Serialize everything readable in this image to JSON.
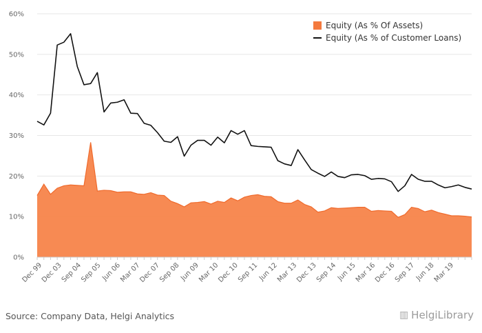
{
  "source_text": "Source: Company Data, Helgi Analytics",
  "logo": {
    "text": "HelgiLibrary",
    "icon": "helgi-logo-icon"
  },
  "colors": {
    "assets": "#f47a3e",
    "assets_fill": "#f7844a",
    "loans": "#111111",
    "grid": "#e6e6e6"
  },
  "chart_data": {
    "type": "area",
    "title": "",
    "xlabel": "",
    "ylabel": "",
    "ylim": [
      0,
      60
    ],
    "yticks": [
      "0%",
      "10%",
      "20%",
      "30%",
      "40%",
      "50%",
      "60%"
    ],
    "grid": true,
    "legend_position": "top-right",
    "x_tick_labels": [
      "Dec 99",
      "Dec 03",
      "Sep 04",
      "Sep 05",
      "Jun 06",
      "Mar 07",
      "Dec 07",
      "Sep 08",
      "Jun 09",
      "Mar 10",
      "Dec 10",
      "Sep 11",
      "Jun 12",
      "Mar 13",
      "Dec 13",
      "Sep 14",
      "Jun 15",
      "Mar 16",
      "Dec 16",
      "Sep 17",
      "Jun 18",
      "Mar 19"
    ],
    "series": [
      {
        "name": "Equity (As % Of Assets)",
        "type": "area",
        "values": [
          15.2,
          18.0,
          15.5,
          17.0,
          17.6,
          17.8,
          17.7,
          17.6,
          28.3,
          16.3,
          16.5,
          16.4,
          16.0,
          16.1,
          16.1,
          15.6,
          15.5,
          15.9,
          15.3,
          15.2,
          13.8,
          13.2,
          12.4,
          13.4,
          13.5,
          13.7,
          13.1,
          13.8,
          13.5,
          14.6,
          13.9,
          14.8,
          15.2,
          15.4,
          15.0,
          14.9,
          13.7,
          13.3,
          13.3,
          14.1,
          13.0,
          12.4,
          11.1,
          11.4,
          12.2,
          12.0,
          12.1,
          12.2,
          12.3,
          12.3,
          11.3,
          11.5,
          11.4,
          11.3,
          9.8,
          10.5,
          12.3,
          12.0,
          11.2,
          11.6,
          11.0,
          10.6,
          10.2,
          10.2,
          10.1,
          9.9
        ]
      },
      {
        "name": "Equity (As % of Customer Loans)",
        "type": "line",
        "values": [
          33.5,
          32.6,
          35.5,
          52.3,
          53.0,
          55.1,
          47.0,
          42.5,
          42.8,
          45.5,
          35.8,
          38.0,
          38.2,
          38.8,
          35.5,
          35.4,
          33.0,
          32.5,
          30.7,
          28.6,
          28.3,
          29.7,
          24.9,
          27.6,
          28.8,
          28.8,
          27.6,
          29.6,
          28.2,
          31.2,
          30.3,
          31.2,
          27.5,
          27.3,
          27.2,
          27.1,
          23.8,
          23.0,
          22.6,
          26.5,
          24.0,
          21.6,
          20.7,
          19.9,
          21.0,
          19.9,
          19.6,
          20.3,
          20.4,
          20.1,
          19.2,
          19.4,
          19.3,
          18.6,
          16.2,
          17.6,
          20.4,
          19.2,
          18.7,
          18.7,
          17.8,
          17.1,
          17.4,
          17.8,
          17.2,
          16.8
        ]
      }
    ]
  }
}
